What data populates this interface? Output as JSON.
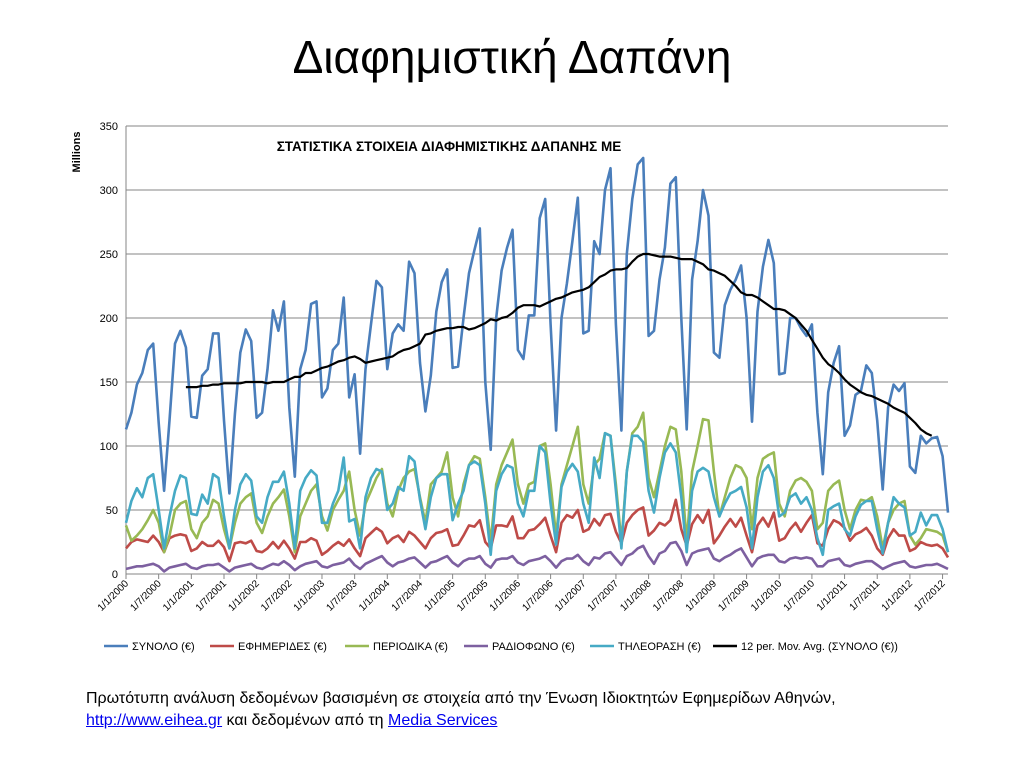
{
  "slide": {
    "title": "Διαφημιστική Δαπάνη",
    "caption_text_1": "Πρωτότυπη ανάλυση δεδομένων βασισμένη σε στοιχεία από την Ένωση Ιδιοκτητών Εφημερίδων Αθηνών,",
    "caption_link_1": "http://www.eihea.gr",
    "caption_text_2": " και δεδομένων από τη ",
    "caption_link_2": "Media Services"
  },
  "colors": {
    "total": "#4a7ebb",
    "newspapers": "#be4b48",
    "periodicals": "#98b954",
    "radio": "#7d60a0",
    "tv": "#46aac5",
    "moving_avg": "#000000",
    "grid": "#868686"
  },
  "chart_data": {
    "type": "line",
    "title": "ΣΤΑΤΙΣΤΙΚΑ ΣΤΟΙΧΕΙΑ ΔΙΑΦΗΜΙΣΤΙΚΗΣ ΔΑΠΑΝΗΣ ΜΕ",
    "ylabel": "Millions",
    "xlabel": "",
    "ylim": [
      0,
      350
    ],
    "yticks": [
      0,
      50,
      100,
      150,
      200,
      250,
      300,
      350
    ],
    "grid": true,
    "legend": "bottom",
    "x_start": "2000-01",
    "x_tick_labels": [
      "1/1/2000",
      "1/7/2000",
      "1/1/2001",
      "1/7/2001",
      "1/1/2002",
      "1/7/2002",
      "1/1/2003",
      "1/7/2003",
      "1/1/2004",
      "1/7/2004",
      "1/1/2005",
      "1/7/2005",
      "1/1/2006",
      "1/7/2006",
      "1/1/2007",
      "1/7/2007",
      "1/1/2008",
      "1/7/2008",
      "1/1/2009",
      "1/7/2009",
      "1/1/2010",
      "1/7/2010",
      "1/1/2011",
      "1/7/2011",
      "1/1/2012",
      "1/7/2012"
    ],
    "series": [
      {
        "name": "ΣΥΝΟΛΟ (€)",
        "key": "total",
        "values": [
          113,
          126,
          148,
          157,
          175,
          180,
          118,
          65,
          120,
          180,
          190,
          177,
          123,
          122,
          155,
          160,
          188,
          188,
          120,
          63,
          125,
          173,
          191,
          182,
          122,
          126,
          160,
          206,
          190,
          213,
          130,
          76,
          160,
          175,
          211,
          213,
          138,
          145,
          175,
          180,
          216,
          138,
          156,
          94,
          160,
          195,
          229,
          224,
          160,
          188,
          195,
          190,
          244,
          235,
          165,
          127,
          155,
          205,
          228,
          238,
          161,
          162,
          200,
          235,
          253,
          270,
          150,
          97,
          200,
          237,
          255,
          269,
          175,
          168,
          202,
          202,
          278,
          293,
          195,
          112,
          200,
          227,
          260,
          294,
          188,
          190,
          260,
          250,
          300,
          317,
          195,
          112,
          250,
          293,
          320,
          325,
          186,
          190,
          230,
          255,
          305,
          310,
          200,
          113,
          230,
          260,
          300,
          280,
          173,
          169,
          210,
          222,
          230,
          241,
          200,
          119,
          205,
          240,
          261,
          243,
          156,
          157,
          200,
          200,
          192,
          186,
          195,
          126,
          78,
          142,
          165,
          178,
          108,
          116,
          140,
          143,
          163,
          157,
          120,
          66,
          130,
          148,
          143,
          149,
          84,
          79,
          108,
          102,
          106,
          107,
          92,
          48
        ]
      },
      {
        "name": "ΕΦΗΜΕΡΙΔΕΣ (€)",
        "key": "newspapers",
        "values": [
          20,
          25,
          27,
          26,
          25,
          30,
          25,
          17,
          28,
          30,
          31,
          30,
          18,
          20,
          25,
          22,
          22,
          26,
          21,
          10,
          24,
          25,
          24,
          26,
          18,
          17,
          20,
          25,
          20,
          26,
          20,
          12,
          25,
          25,
          28,
          26,
          15,
          18,
          22,
          25,
          22,
          27,
          20,
          14,
          28,
          32,
          36,
          33,
          24,
          28,
          30,
          25,
          33,
          30,
          25,
          20,
          28,
          32,
          33,
          35,
          22,
          23,
          30,
          38,
          37,
          42,
          25,
          20,
          38,
          38,
          37,
          45,
          28,
          28,
          34,
          35,
          39,
          44,
          30,
          17,
          40,
          46,
          44,
          50,
          33,
          35,
          43,
          38,
          46,
          47,
          33,
          24,
          40,
          46,
          50,
          52,
          30,
          34,
          40,
          38,
          42,
          58,
          35,
          22,
          39,
          46,
          40,
          50,
          24,
          30,
          37,
          43,
          37,
          44,
          30,
          17,
          38,
          44,
          37,
          48,
          26,
          28,
          35,
          40,
          33,
          40,
          46,
          24,
          22,
          35,
          42,
          40,
          36,
          26,
          31,
          33,
          36,
          30,
          20,
          15,
          28,
          35,
          30,
          30,
          18,
          20,
          25,
          23,
          22,
          23,
          20,
          13
        ]
      },
      {
        "name": "ΠΕΡΙΟΔΙΚΑ (€)",
        "key": "periodicals",
        "values": [
          38,
          26,
          30,
          35,
          42,
          50,
          40,
          17,
          30,
          50,
          55,
          57,
          35,
          28,
          40,
          45,
          58,
          55,
          35,
          20,
          40,
          55,
          60,
          63,
          40,
          32,
          45,
          55,
          60,
          66,
          45,
          17,
          45,
          55,
          65,
          70,
          45,
          34,
          50,
          58,
          65,
          80,
          50,
          30,
          55,
          65,
          75,
          82,
          55,
          45,
          65,
          75,
          80,
          82,
          60,
          40,
          70,
          75,
          80,
          95,
          60,
          45,
          70,
          85,
          92,
          90,
          60,
          25,
          70,
          85,
          95,
          105,
          70,
          55,
          70,
          72,
          100,
          102,
          70,
          30,
          70,
          85,
          100,
          115,
          70,
          55,
          85,
          90,
          110,
          108,
          70,
          25,
          80,
          110,
          115,
          126,
          75,
          60,
          80,
          100,
          115,
          113,
          80,
          25,
          80,
          100,
          121,
          120,
          80,
          45,
          60,
          75,
          85,
          83,
          75,
          35,
          75,
          90,
          93,
          95,
          55,
          45,
          65,
          73,
          75,
          72,
          65,
          35,
          40,
          65,
          70,
          73,
          50,
          35,
          50,
          58,
          57,
          60,
          45,
          20,
          40,
          50,
          55,
          57,
          30,
          23,
          28,
          35,
          34,
          33,
          30,
          17
        ]
      },
      {
        "name": "ΡΑΔΙΟΦΩΝΟ (€)",
        "key": "radio",
        "values": [
          4,
          5,
          6,
          6,
          7,
          8,
          6,
          2,
          5,
          6,
          7,
          8,
          5,
          4,
          6,
          7,
          7,
          8,
          5,
          2,
          5,
          6,
          7,
          8,
          5,
          4,
          6,
          8,
          7,
          10,
          7,
          3,
          6,
          8,
          9,
          10,
          6,
          5,
          7,
          8,
          9,
          12,
          7,
          4,
          8,
          10,
          12,
          14,
          9,
          6,
          9,
          10,
          12,
          13,
          9,
          5,
          9,
          10,
          12,
          14,
          9,
          6,
          10,
          12,
          12,
          14,
          8,
          5,
          11,
          12,
          12,
          14,
          9,
          7,
          10,
          11,
          12,
          14,
          10,
          5,
          10,
          12,
          12,
          15,
          10,
          7,
          13,
          12,
          16,
          17,
          12,
          7,
          14,
          16,
          20,
          22,
          14,
          8,
          16,
          18,
          24,
          25,
          18,
          7,
          16,
          18,
          19,
          20,
          12,
          10,
          13,
          15,
          18,
          20,
          13,
          6,
          12,
          14,
          15,
          15,
          10,
          9,
          12,
          13,
          12,
          13,
          12,
          6,
          6,
          10,
          11,
          12,
          7,
          6,
          8,
          9,
          10,
          10,
          7,
          4,
          6,
          8,
          9,
          10,
          6,
          5,
          6,
          7,
          7,
          8,
          6,
          4
        ]
      },
      {
        "name": "ΤΗΛΕΟΡΑΣΗ (€)",
        "key": "tv",
        "values": [
          40,
          57,
          67,
          60,
          75,
          78,
          50,
          20,
          45,
          65,
          77,
          75,
          47,
          46,
          62,
          55,
          78,
          75,
          45,
          20,
          50,
          70,
          78,
          73,
          45,
          40,
          60,
          72,
          72,
          80,
          55,
          20,
          65,
          75,
          81,
          77,
          40,
          40,
          55,
          65,
          91,
          41,
          43,
          20,
          60,
          75,
          82,
          80,
          50,
          55,
          68,
          65,
          92,
          88,
          58,
          35,
          60,
          75,
          78,
          78,
          42,
          55,
          65,
          85,
          88,
          85,
          55,
          15,
          65,
          78,
          85,
          83,
          55,
          45,
          65,
          65,
          100,
          95,
          55,
          23,
          68,
          80,
          86,
          80,
          55,
          40,
          91,
          75,
          110,
          108,
          65,
          20,
          80,
          108,
          108,
          103,
          65,
          48,
          75,
          95,
          102,
          95,
          60,
          17,
          65,
          80,
          83,
          80,
          60,
          45,
          55,
          63,
          65,
          68,
          52,
          20,
          60,
          80,
          85,
          75,
          45,
          48,
          60,
          63,
          55,
          60,
          50,
          28,
          15,
          50,
          53,
          55,
          35,
          30,
          45,
          54,
          57,
          57,
          35,
          16,
          40,
          60,
          55,
          52,
          30,
          33,
          48,
          38,
          46,
          46,
          35,
          17
        ]
      },
      {
        "name": "12 per. Mov. Avg. (ΣΥΝΟΛΟ (€))",
        "key": "moving_avg",
        "start_index": 11,
        "values": [
          146,
          146,
          146,
          147,
          147,
          148,
          148,
          149,
          149,
          149,
          149,
          150,
          150,
          150,
          150,
          149,
          150,
          150,
          150,
          152,
          154,
          154,
          157,
          157,
          159,
          161,
          162,
          164,
          166,
          167,
          169,
          170,
          168,
          165,
          166,
          167,
          168,
          169,
          170,
          173,
          175,
          176,
          178,
          180,
          187,
          188,
          190,
          191,
          192,
          192,
          193,
          193,
          191,
          192,
          194,
          196,
          199,
          198,
          200,
          201,
          204,
          208,
          210,
          210,
          210,
          209,
          211,
          213,
          215,
          216,
          218,
          220,
          221,
          222,
          224,
          228,
          232,
          234,
          237,
          238,
          238,
          239,
          244,
          248,
          250,
          250,
          249,
          248,
          248,
          248,
          247,
          246,
          246,
          246,
          244,
          242,
          238,
          237,
          235,
          233,
          229,
          225,
          220,
          218,
          218,
          216,
          213,
          210,
          207,
          207,
          206,
          203,
          200,
          195,
          190,
          183,
          176,
          169,
          164,
          161,
          157,
          152,
          148,
          145,
          142,
          140,
          139,
          137,
          135,
          133,
          130,
          128,
          126,
          122,
          118,
          113,
          110,
          108
        ]
      }
    ]
  }
}
